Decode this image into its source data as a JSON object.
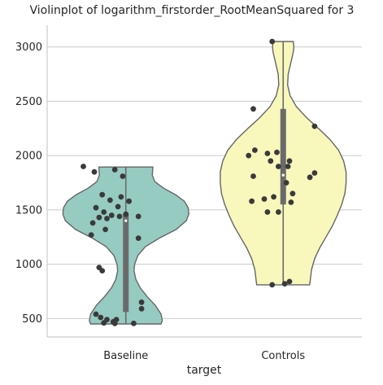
{
  "chart_data": {
    "type": "violin",
    "title": "Violinplot of logarithm_firstorder_RootMeanSquared for 3",
    "xlabel": "target",
    "ylabel": "",
    "categories": [
      "Baseline",
      "Controls"
    ],
    "ylim": [
      330,
      3200
    ],
    "yticks": [
      500,
      1000,
      1500,
      2000,
      2500,
      3000
    ],
    "grid": "horizontal",
    "colors": {
      "Baseline": "#96cbc2",
      "Controls": "#f8f8bd",
      "outline": "#666666",
      "points": "#3a3a3a",
      "grid": "#cccccc",
      "axis": "#cccccc"
    },
    "series": [
      {
        "category": "Baseline",
        "range": [
          450,
          1895
        ],
        "quartiles": [
          560,
          1400,
          1460
        ],
        "median": 1400,
        "profile": [
          [
            450,
            0.56
          ],
          [
            480,
            0.58
          ],
          [
            540,
            0.56
          ],
          [
            620,
            0.47
          ],
          [
            700,
            0.34
          ],
          [
            780,
            0.23
          ],
          [
            860,
            0.16
          ],
          [
            940,
            0.13
          ],
          [
            1000,
            0.14
          ],
          [
            1080,
            0.19
          ],
          [
            1160,
            0.31
          ],
          [
            1240,
            0.53
          ],
          [
            1320,
            0.8
          ],
          [
            1400,
            0.96
          ],
          [
            1460,
            1.0
          ],
          [
            1520,
            0.99
          ],
          [
            1580,
            0.93
          ],
          [
            1640,
            0.79
          ],
          [
            1700,
            0.6
          ],
          [
            1760,
            0.46
          ],
          [
            1820,
            0.42
          ],
          [
            1895,
            0.43
          ]
        ],
        "points": [
          [
            0.23,
            1900
          ],
          [
            0.3,
            1850
          ],
          [
            0.43,
            1870
          ],
          [
            0.48,
            1810
          ],
          [
            0.35,
            1640
          ],
          [
            0.47,
            1620
          ],
          [
            0.4,
            1590
          ],
          [
            0.52,
            1580
          ],
          [
            0.45,
            1530
          ],
          [
            0.31,
            1520
          ],
          [
            0.36,
            1480
          ],
          [
            0.5,
            1460
          ],
          [
            0.41,
            1450
          ],
          [
            0.46,
            1440
          ],
          [
            0.58,
            1440
          ],
          [
            0.33,
            1430
          ],
          [
            0.38,
            1420
          ],
          [
            0.29,
            1380
          ],
          [
            0.37,
            1320
          ],
          [
            0.28,
            1270
          ],
          [
            0.58,
            1240
          ],
          [
            0.33,
            970
          ],
          [
            0.35,
            940
          ],
          [
            0.6,
            650
          ],
          [
            0.6,
            590
          ],
          [
            0.31,
            540
          ],
          [
            0.34,
            510
          ],
          [
            0.38,
            490
          ],
          [
            0.44,
            490
          ],
          [
            0.42,
            470
          ],
          [
            0.36,
            460
          ],
          [
            0.43,
            455
          ],
          [
            0.55,
            455
          ]
        ]
      },
      {
        "category": "Controls",
        "range": [
          810,
          3050
        ],
        "quartiles": [
          1550,
          1820,
          2430
        ],
        "median": 1820,
        "profile": [
          [
            810,
            0.42
          ],
          [
            850,
            0.43
          ],
          [
            950,
            0.45
          ],
          [
            1050,
            0.5
          ],
          [
            1150,
            0.58
          ],
          [
            1250,
            0.68
          ],
          [
            1350,
            0.78
          ],
          [
            1450,
            0.86
          ],
          [
            1550,
            0.93
          ],
          [
            1650,
            0.98
          ],
          [
            1750,
            1.0
          ],
          [
            1850,
            1.0
          ],
          [
            1950,
            0.96
          ],
          [
            2050,
            0.88
          ],
          [
            2150,
            0.74
          ],
          [
            2250,
            0.56
          ],
          [
            2350,
            0.37
          ],
          [
            2450,
            0.21
          ],
          [
            2550,
            0.11
          ],
          [
            2650,
            0.07
          ],
          [
            2750,
            0.08
          ],
          [
            2850,
            0.12
          ],
          [
            2950,
            0.16
          ],
          [
            3000,
            0.17
          ],
          [
            3050,
            0.16
          ]
        ],
        "points": [
          [
            0.43,
            3050
          ],
          [
            0.31,
            2430
          ],
          [
            0.7,
            2270
          ],
          [
            0.32,
            2050
          ],
          [
            0.46,
            2030
          ],
          [
            0.4,
            2020
          ],
          [
            0.28,
            2000
          ],
          [
            0.42,
            1950
          ],
          [
            0.54,
            1950
          ],
          [
            0.47,
            1900
          ],
          [
            0.53,
            1900
          ],
          [
            0.7,
            1840
          ],
          [
            0.67,
            1800
          ],
          [
            0.31,
            1810
          ],
          [
            0.52,
            1750
          ],
          [
            0.56,
            1650
          ],
          [
            0.44,
            1620
          ],
          [
            0.38,
            1600
          ],
          [
            0.3,
            1580
          ],
          [
            0.55,
            1570
          ],
          [
            0.4,
            1480
          ],
          [
            0.47,
            1480
          ],
          [
            0.54,
            840
          ],
          [
            0.51,
            820
          ],
          [
            0.43,
            810
          ]
        ]
      }
    ]
  }
}
